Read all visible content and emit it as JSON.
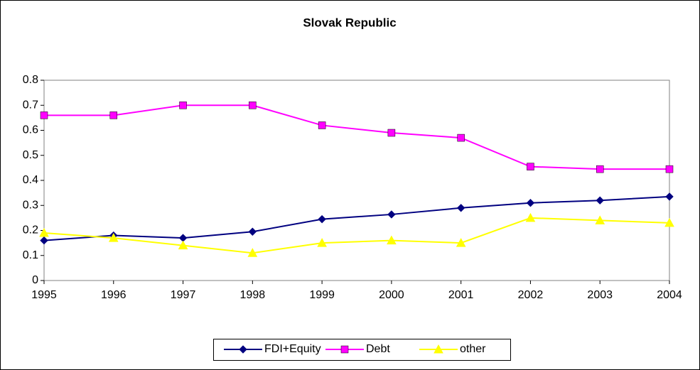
{
  "chart_data": {
    "type": "line",
    "title": "Slovak Republic",
    "x": [
      1995,
      1996,
      1997,
      1998,
      1999,
      2000,
      2001,
      2002,
      2003,
      2004
    ],
    "xlim": [
      1995,
      2004
    ],
    "xticks": [
      1995,
      1996,
      1997,
      1998,
      1999,
      2000,
      2001,
      2002,
      2003,
      2004
    ],
    "ylim": [
      0,
      0.8
    ],
    "yticks": [
      0,
      0.1,
      0.2,
      0.3,
      0.4,
      0.5,
      0.6,
      0.7,
      0.8
    ],
    "legend": "bottom",
    "series": [
      {
        "name": "FDI+Equity",
        "color": "#000080",
        "marker": "diamond",
        "values": [
          0.16,
          0.18,
          0.17,
          0.195,
          0.245,
          0.264,
          0.29,
          0.31,
          0.32,
          0.335
        ]
      },
      {
        "name": "Debt",
        "color": "#ff00ff",
        "marker": "square",
        "values": [
          0.66,
          0.66,
          0.7,
          0.7,
          0.62,
          0.59,
          0.57,
          0.455,
          0.445,
          0.445
        ]
      },
      {
        "name": "other",
        "color": "#ffff00",
        "marker": "triangle",
        "values": [
          0.19,
          0.17,
          0.14,
          0.11,
          0.15,
          0.16,
          0.15,
          0.25,
          0.24,
          0.23
        ]
      }
    ]
  }
}
